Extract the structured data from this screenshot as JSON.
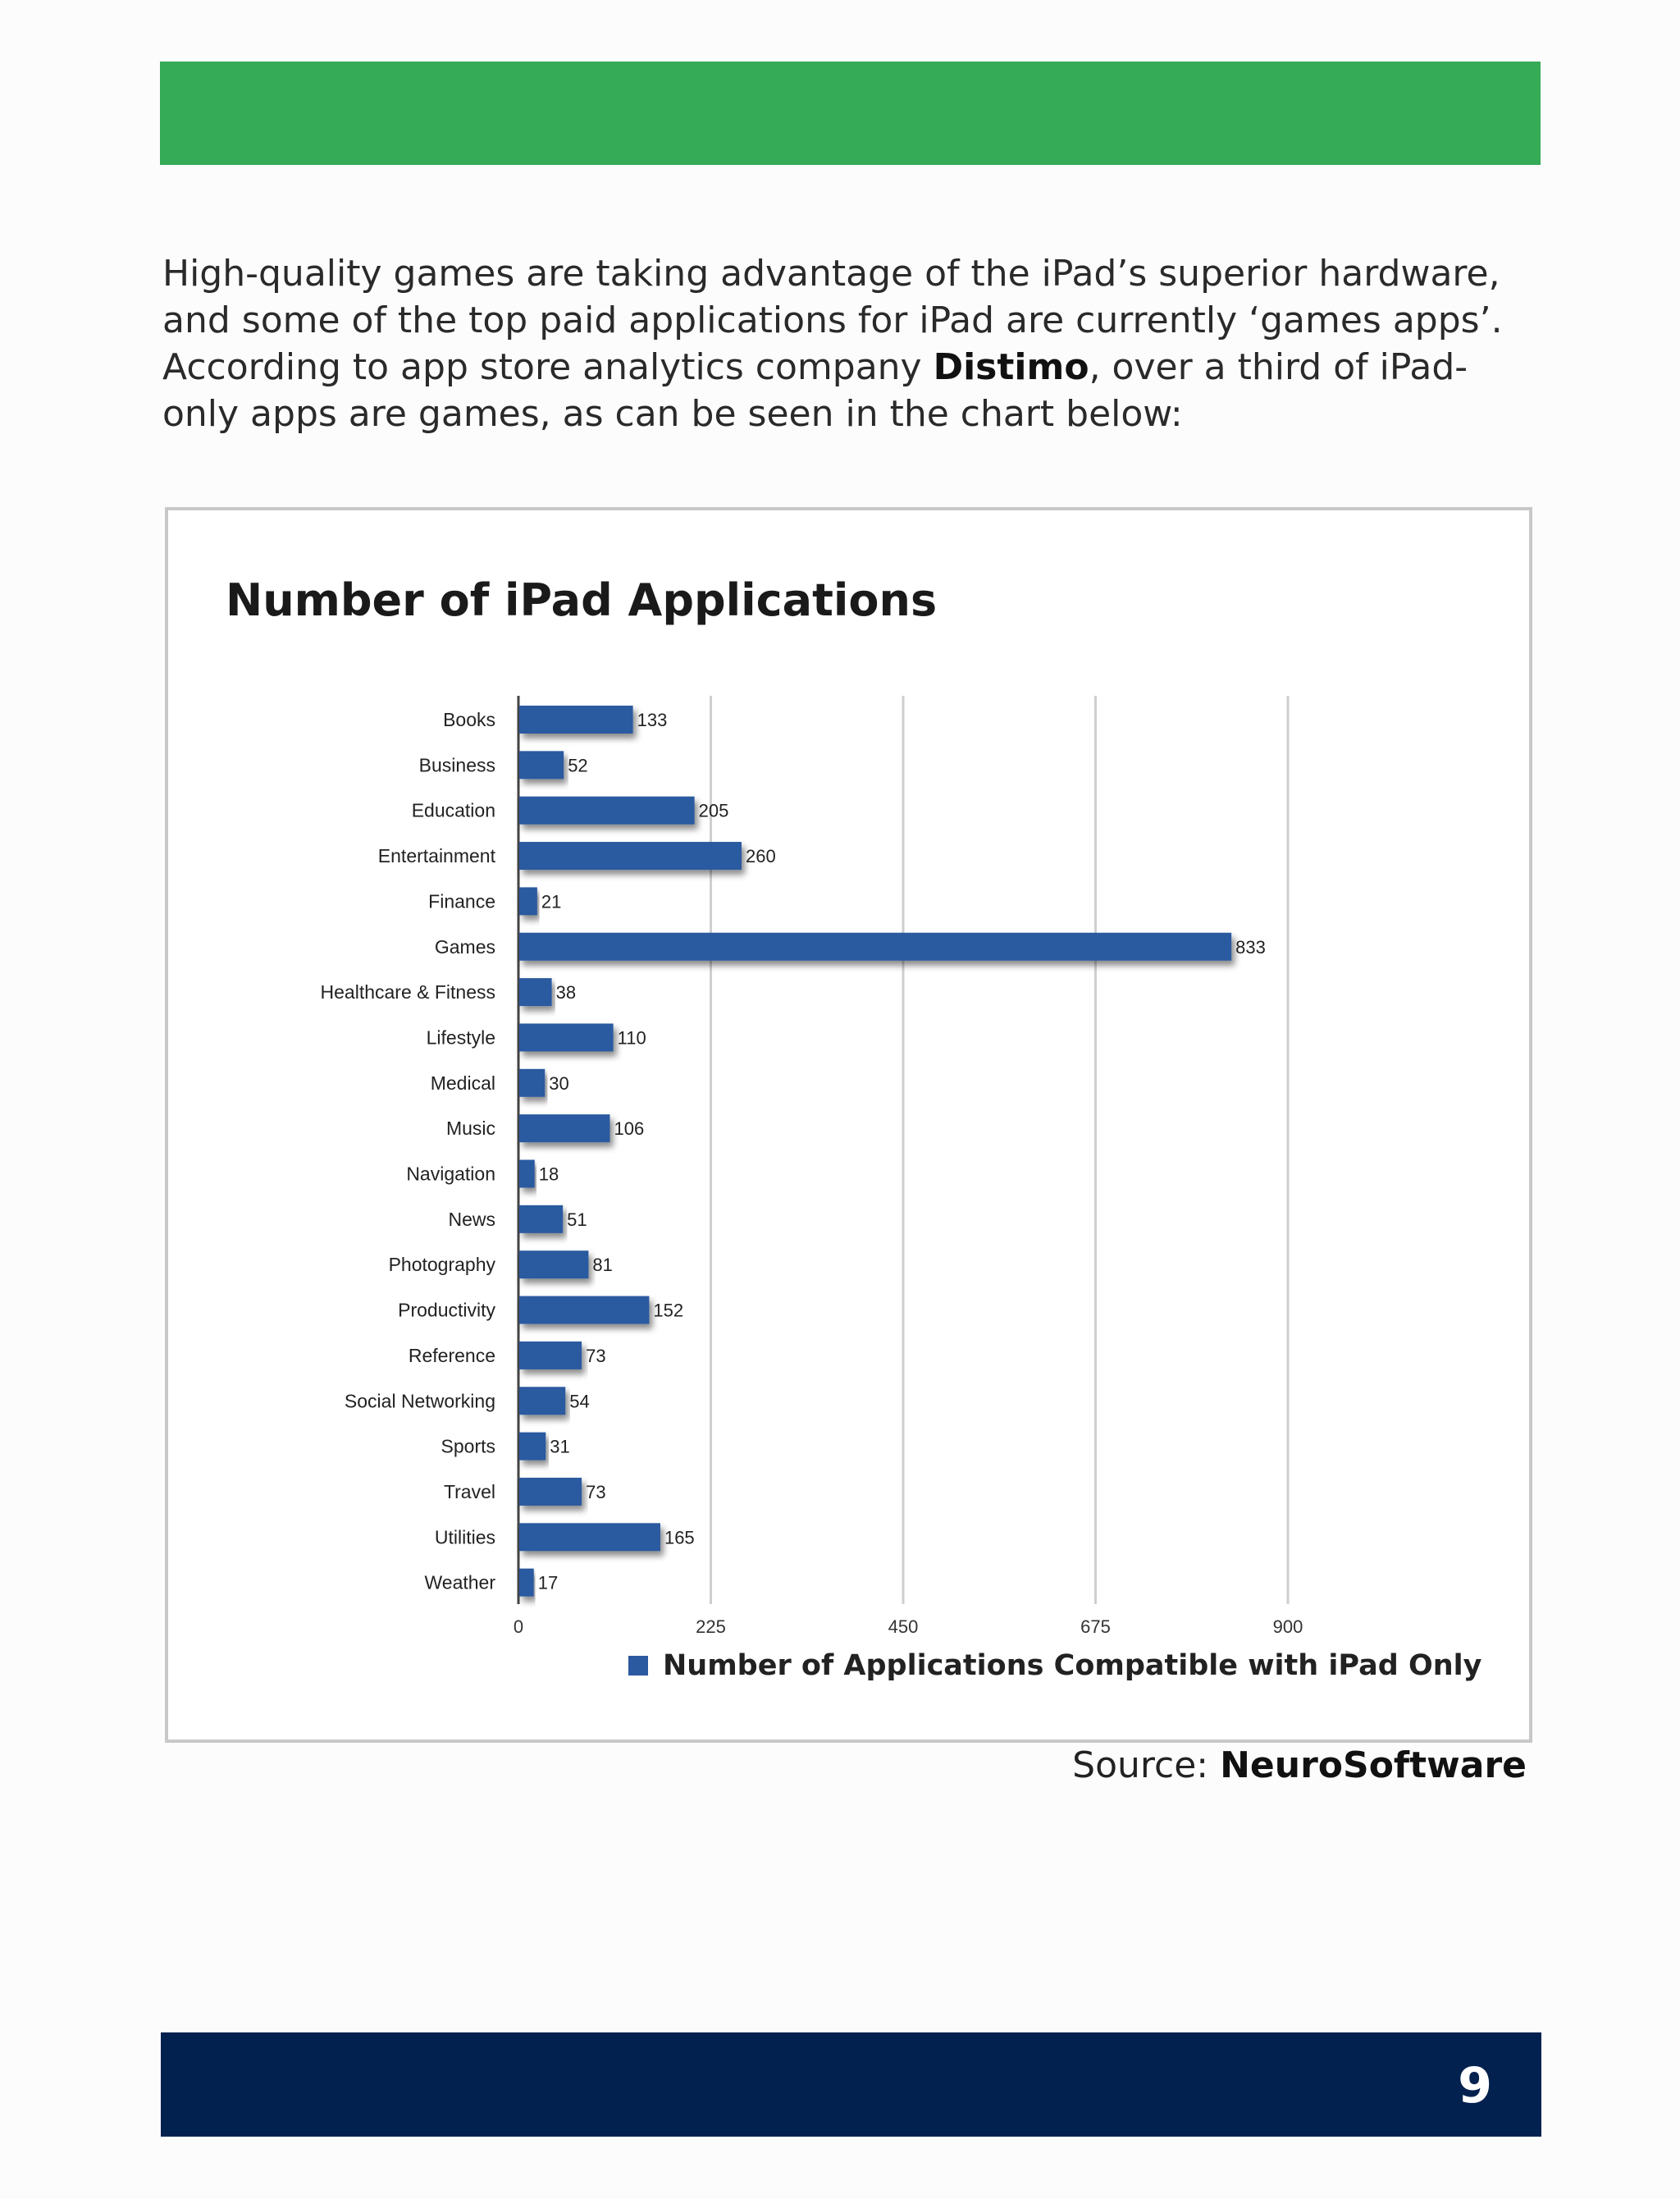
{
  "intro": {
    "text_before": "High-quality games are taking advantage of the iPad’s superior hardware, and some of the top paid applications for iPad are currently ‘games apps’. According to app store analytics company ",
    "company": "Distimo",
    "text_after": ", over a third of iPad-only apps are games, as can be seen in the chart below:"
  },
  "source": {
    "label": "Source: ",
    "name": "NeuroSoftware"
  },
  "footer": {
    "page_number": "9"
  },
  "colors": {
    "header_green": "#35ab57",
    "footer_navy": "#03214f",
    "bar": "#2c5aa0"
  },
  "chart_data": {
    "type": "bar",
    "orientation": "horizontal",
    "title": "Number of iPad Applications",
    "categories": [
      "Books",
      "Business",
      "Education",
      "Entertainment",
      "Finance",
      "Games",
      "Healthcare & Fitness",
      "Lifestyle",
      "Medical",
      "Music",
      "Navigation",
      "News",
      "Photography",
      "Productivity",
      "Reference",
      "Social Networking",
      "Sports",
      "Travel",
      "Utilities",
      "Weather"
    ],
    "series": [
      {
        "name": "Number of Applications Compatible with iPad Only",
        "values": [
          133,
          52,
          205,
          260,
          21,
          833,
          38,
          110,
          30,
          106,
          18,
          51,
          81,
          152,
          73,
          54,
          31,
          73,
          165,
          17
        ]
      }
    ],
    "xticks": [
      0,
      225,
      450,
      675,
      900
    ],
    "xlim": [
      0,
      900
    ],
    "grid": true,
    "legend": "bottom"
  }
}
